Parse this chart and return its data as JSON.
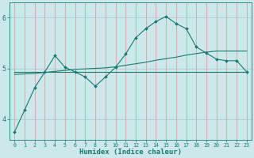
{
  "title": "",
  "xlabel": "Humidex (Indice chaleur)",
  "background_color": "#cce8ea",
  "grid_color_v": "#c8a0a0",
  "grid_color_h": "#b0d0d4",
  "line_color": "#1a7a6e",
  "xlim": [
    -0.5,
    23.5
  ],
  "ylim": [
    3.6,
    6.3
  ],
  "yticks": [
    4,
    5,
    6
  ],
  "xticks": [
    0,
    1,
    2,
    3,
    4,
    5,
    6,
    7,
    8,
    9,
    10,
    11,
    12,
    13,
    14,
    15,
    16,
    17,
    18,
    19,
    20,
    21,
    22,
    23
  ],
  "line1_x": [
    0,
    1,
    2,
    3,
    4,
    5,
    6,
    7,
    8,
    9,
    10,
    11,
    12,
    13,
    14,
    15,
    16,
    17,
    18,
    19,
    20,
    21,
    22,
    23
  ],
  "line1_y": [
    3.75,
    4.18,
    4.62,
    4.93,
    5.25,
    5.02,
    4.93,
    4.83,
    4.65,
    4.83,
    5.02,
    5.28,
    5.6,
    5.78,
    5.92,
    6.02,
    5.88,
    5.78,
    5.42,
    5.3,
    5.18,
    5.15,
    5.15,
    4.93
  ],
  "line2_x": [
    0,
    1,
    2,
    3,
    4,
    5,
    6,
    7,
    8,
    9,
    10,
    11,
    12,
    13,
    14,
    15,
    16,
    17,
    18,
    19,
    20,
    21,
    22,
    23
  ],
  "line2_y": [
    4.93,
    4.93,
    4.93,
    4.93,
    4.93,
    4.93,
    4.93,
    4.93,
    4.93,
    4.93,
    4.93,
    4.93,
    4.93,
    4.93,
    4.93,
    4.93,
    4.93,
    4.93,
    4.93,
    4.93,
    4.93,
    4.93,
    4.93,
    4.93
  ],
  "line3_x": [
    0,
    1,
    2,
    3,
    4,
    5,
    6,
    7,
    8,
    9,
    10,
    11,
    12,
    13,
    14,
    15,
    16,
    17,
    18,
    19,
    20,
    21,
    22,
    23
  ],
  "line3_y": [
    4.88,
    4.89,
    4.9,
    4.92,
    4.94,
    4.96,
    4.98,
    4.99,
    5.0,
    5.01,
    5.03,
    5.06,
    5.09,
    5.12,
    5.16,
    5.19,
    5.22,
    5.26,
    5.29,
    5.32,
    5.34,
    5.34,
    5.34,
    5.34
  ]
}
